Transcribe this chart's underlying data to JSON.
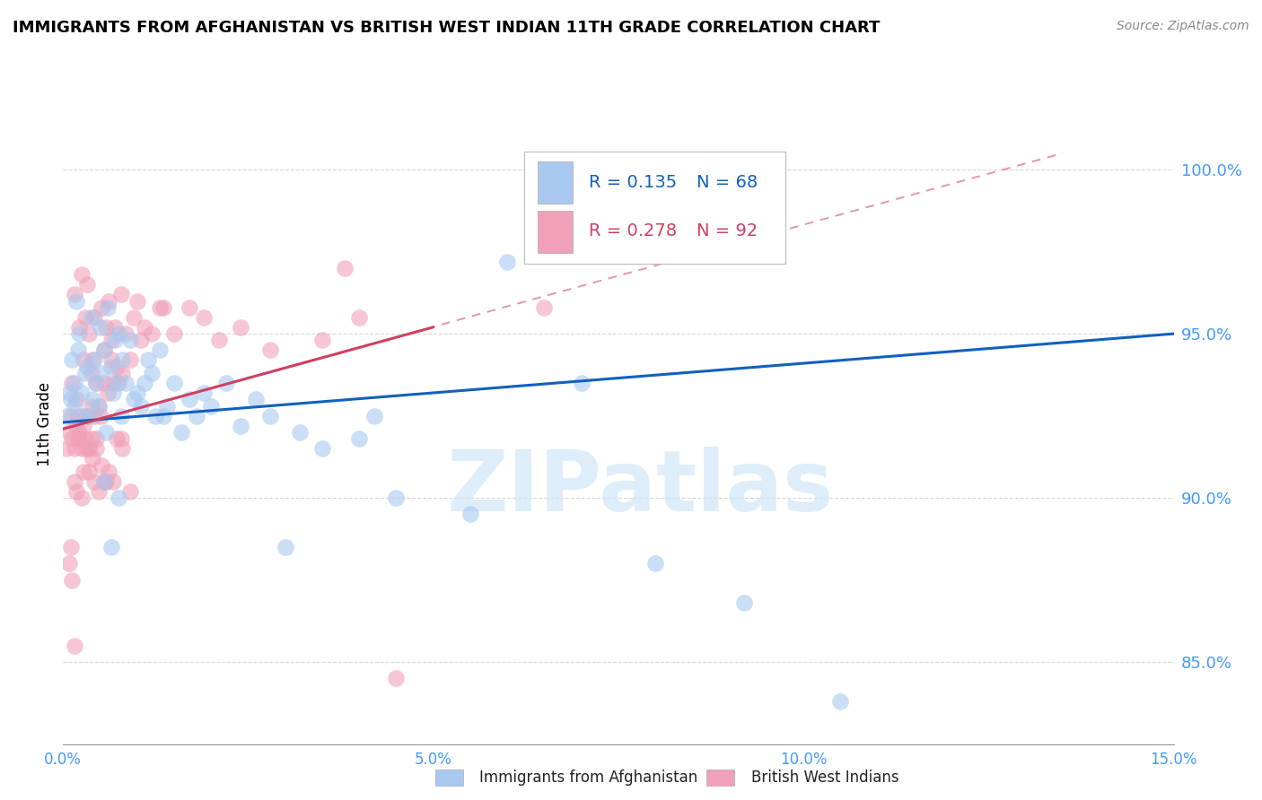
{
  "title": "IMMIGRANTS FROM AFGHANISTAN VS BRITISH WEST INDIAN 11TH GRADE CORRELATION CHART",
  "source": "Source: ZipAtlas.com",
  "ylabel": "11th Grade",
  "xlim": [
    0.0,
    15.0
  ],
  "ylim": [
    82.5,
    102.0
  ],
  "yticks": [
    85.0,
    90.0,
    95.0,
    100.0
  ],
  "xticks": [
    0.0,
    5.0,
    10.0,
    15.0
  ],
  "xtick_labels": [
    "0.0%",
    "5.0%",
    "10.0%",
    "15.0%"
  ],
  "ytick_labels": [
    "85.0%",
    "90.0%",
    "95.0%",
    "100.0%"
  ],
  "legend_blue_r": "R = 0.135",
  "legend_blue_n": "N = 68",
  "legend_pink_r": "R = 0.278",
  "legend_pink_n": "N = 92",
  "blue_color": "#A8C8F0",
  "pink_color": "#F0A0B8",
  "blue_line_color": "#1060C0",
  "pink_line_color": "#D04060",
  "watermark": "ZIPatlas",
  "background_color": "#ffffff",
  "grid_color": "#cccccc",
  "axis_color": "#4499ff",
  "title_fontsize": 13,
  "blue_trend_x0": 0.0,
  "blue_trend_y0": 92.3,
  "blue_trend_x1": 15.0,
  "blue_trend_y1": 95.0,
  "pink_solid_x0": 0.0,
  "pink_solid_y0": 92.1,
  "pink_solid_x1": 5.0,
  "pink_solid_y1": 95.2,
  "pink_dash_x0": 0.0,
  "pink_dash_y0": 92.1,
  "pink_dash_x1": 13.5,
  "pink_dash_y1": 100.5,
  "blue_x": [
    0.05,
    0.08,
    0.1,
    0.12,
    0.15,
    0.15,
    0.18,
    0.2,
    0.22,
    0.25,
    0.28,
    0.3,
    0.32,
    0.35,
    0.38,
    0.4,
    0.42,
    0.45,
    0.48,
    0.5,
    0.52,
    0.55,
    0.58,
    0.6,
    0.65,
    0.68,
    0.7,
    0.72,
    0.75,
    0.78,
    0.8,
    0.85,
    0.9,
    0.95,
    1.0,
    1.05,
    1.1,
    1.15,
    1.2,
    1.25,
    1.3,
    1.4,
    1.5,
    1.6,
    1.7,
    1.8,
    1.9,
    2.0,
    2.2,
    2.4,
    2.6,
    2.8,
    3.0,
    3.2,
    3.5,
    4.0,
    4.5,
    5.5,
    6.0,
    7.0,
    8.0,
    9.2,
    10.5,
    4.2,
    1.35,
    0.55,
    0.65,
    0.75
  ],
  "blue_y": [
    92.5,
    93.2,
    93.0,
    94.2,
    93.5,
    92.8,
    96.0,
    94.5,
    95.0,
    93.2,
    92.5,
    93.8,
    94.0,
    92.5,
    95.5,
    93.0,
    94.2,
    93.5,
    92.8,
    95.2,
    93.8,
    94.5,
    92.0,
    95.8,
    94.0,
    93.2,
    94.8,
    93.5,
    95.0,
    92.5,
    94.2,
    93.5,
    94.8,
    93.0,
    93.2,
    92.8,
    93.5,
    94.2,
    93.8,
    92.5,
    94.5,
    92.8,
    93.5,
    92.0,
    93.0,
    92.5,
    93.2,
    92.8,
    93.5,
    92.2,
    93.0,
    92.5,
    88.5,
    92.0,
    91.5,
    91.8,
    90.0,
    89.5,
    97.2,
    93.5,
    88.0,
    86.8,
    83.8,
    92.5,
    92.5,
    90.5,
    88.5,
    90.0
  ],
  "pink_x": [
    0.05,
    0.08,
    0.1,
    0.1,
    0.12,
    0.12,
    0.15,
    0.15,
    0.18,
    0.18,
    0.2,
    0.2,
    0.22,
    0.22,
    0.25,
    0.25,
    0.28,
    0.28,
    0.3,
    0.3,
    0.32,
    0.32,
    0.35,
    0.35,
    0.38,
    0.38,
    0.4,
    0.4,
    0.42,
    0.42,
    0.45,
    0.45,
    0.48,
    0.5,
    0.52,
    0.55,
    0.58,
    0.6,
    0.62,
    0.65,
    0.68,
    0.7,
    0.72,
    0.75,
    0.78,
    0.8,
    0.85,
    0.9,
    0.95,
    1.0,
    1.05,
    1.1,
    1.2,
    1.3,
    1.5,
    1.7,
    1.9,
    2.1,
    2.4,
    2.8,
    0.55,
    0.65,
    3.5,
    4.0,
    1.35,
    0.55,
    0.35,
    0.25,
    0.15,
    0.28,
    0.35,
    0.18,
    0.22,
    0.3,
    0.42,
    0.48,
    0.38,
    0.52,
    0.62,
    0.45,
    0.58,
    0.72,
    0.8,
    0.68,
    0.9,
    0.78,
    6.5,
    0.15,
    3.8,
    4.5,
    0.12,
    0.08
  ],
  "pink_y": [
    91.5,
    92.0,
    88.5,
    92.5,
    91.8,
    93.5,
    91.5,
    96.2,
    92.2,
    93.0,
    91.8,
    92.5,
    92.0,
    95.2,
    91.5,
    96.8,
    92.2,
    94.2,
    91.8,
    95.5,
    92.5,
    96.5,
    91.5,
    95.0,
    92.8,
    93.8,
    91.2,
    94.2,
    92.5,
    95.5,
    91.8,
    93.5,
    92.8,
    92.5,
    95.8,
    94.5,
    95.2,
    93.2,
    96.0,
    94.8,
    93.5,
    95.2,
    94.0,
    93.5,
    96.2,
    93.8,
    95.0,
    94.2,
    95.5,
    96.0,
    94.8,
    95.2,
    95.0,
    95.8,
    95.0,
    95.8,
    95.5,
    94.8,
    95.2,
    94.5,
    93.5,
    94.2,
    94.8,
    95.5,
    95.8,
    90.5,
    90.8,
    90.0,
    90.5,
    90.8,
    91.5,
    90.2,
    91.8,
    91.5,
    90.5,
    90.2,
    91.8,
    91.0,
    90.8,
    91.5,
    90.5,
    91.8,
    91.5,
    90.5,
    90.2,
    91.8,
    95.8,
    85.5,
    97.0,
    84.5,
    87.5,
    88.0
  ]
}
